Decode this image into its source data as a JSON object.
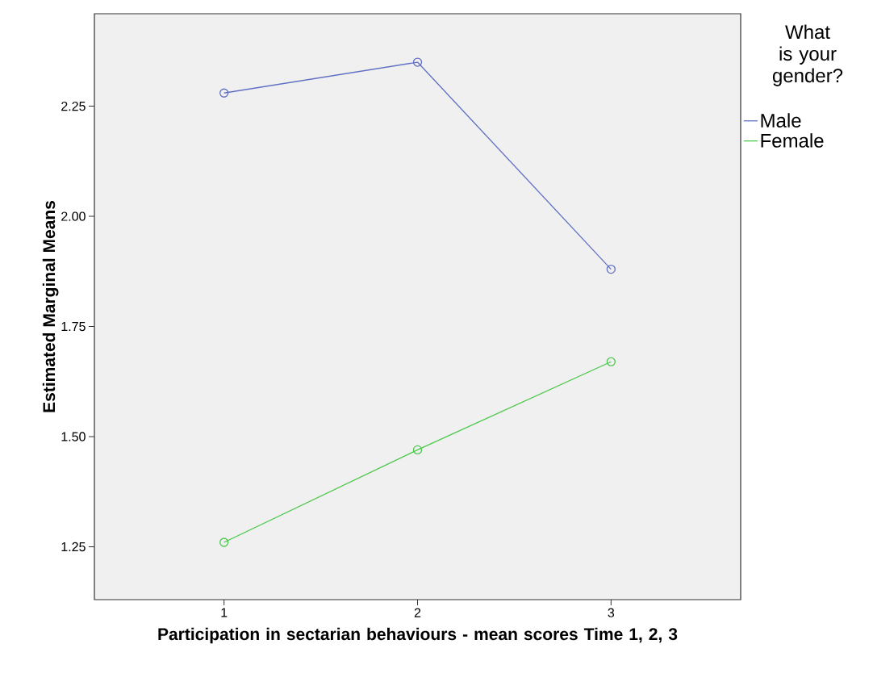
{
  "chart_data": {
    "type": "line",
    "xlabel": "Participation in sectarian behaviours - mean scores Time 1, 2, 3",
    "ylabel": "Estimated Marginal Means",
    "legend_title": "What is your gender?",
    "x": [
      1,
      2,
      3
    ],
    "series": [
      {
        "name": "Male",
        "color": "#6270c4",
        "values": [
          2.28,
          2.35,
          1.88
        ]
      },
      {
        "name": "Female",
        "color": "#4cc84c",
        "values": [
          1.26,
          1.47,
          1.67
        ]
      }
    ],
    "xlim": [
      0.33,
      3.67
    ],
    "xticks": [
      1,
      2,
      3
    ],
    "ylim": [
      1.13,
      2.46
    ],
    "yticks": [
      {
        "value": 1.25,
        "label": "1.25"
      },
      {
        "value": 1.5,
        "label": "1.50"
      },
      {
        "value": 1.75,
        "label": "1.75"
      },
      {
        "value": 2.0,
        "label": "2.00"
      },
      {
        "value": 2.25,
        "label": "2.25"
      }
    ],
    "grid": false,
    "legend": "right",
    "marker": "circle",
    "line_style": "solid"
  }
}
